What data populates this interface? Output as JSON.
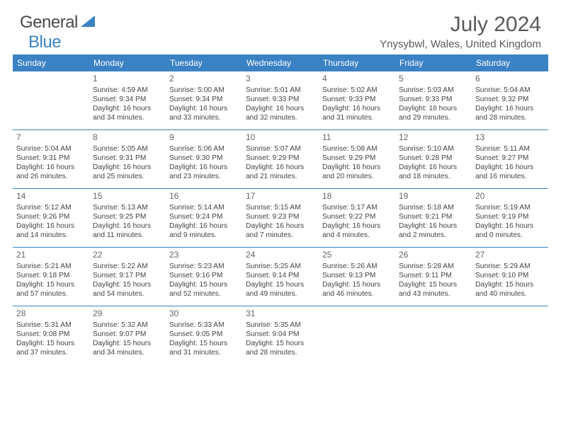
{
  "brand": {
    "part1": "General",
    "part2": "Blue"
  },
  "title": "July 2024",
  "location": "Ynysybwl, Wales, United Kingdom",
  "colors": {
    "header_bg": "#3b82c4",
    "header_text": "#ffffff",
    "border": "#3b82c4",
    "text": "#444444",
    "title": "#5a5a5a"
  },
  "weekdays": [
    "Sunday",
    "Monday",
    "Tuesday",
    "Wednesday",
    "Thursday",
    "Friday",
    "Saturday"
  ],
  "weeks": [
    [
      null,
      {
        "day": "1",
        "sunrise": "Sunrise: 4:59 AM",
        "sunset": "Sunset: 9:34 PM",
        "daylight": "Daylight: 16 hours and 34 minutes."
      },
      {
        "day": "2",
        "sunrise": "Sunrise: 5:00 AM",
        "sunset": "Sunset: 9:34 PM",
        "daylight": "Daylight: 16 hours and 33 minutes."
      },
      {
        "day": "3",
        "sunrise": "Sunrise: 5:01 AM",
        "sunset": "Sunset: 9:33 PM",
        "daylight": "Daylight: 16 hours and 32 minutes."
      },
      {
        "day": "4",
        "sunrise": "Sunrise: 5:02 AM",
        "sunset": "Sunset: 9:33 PM",
        "daylight": "Daylight: 16 hours and 31 minutes."
      },
      {
        "day": "5",
        "sunrise": "Sunrise: 5:03 AM",
        "sunset": "Sunset: 9:33 PM",
        "daylight": "Daylight: 16 hours and 29 minutes."
      },
      {
        "day": "6",
        "sunrise": "Sunrise: 5:04 AM",
        "sunset": "Sunset: 9:32 PM",
        "daylight": "Daylight: 16 hours and 28 minutes."
      }
    ],
    [
      {
        "day": "7",
        "sunrise": "Sunrise: 5:04 AM",
        "sunset": "Sunset: 9:31 PM",
        "daylight": "Daylight: 16 hours and 26 minutes."
      },
      {
        "day": "8",
        "sunrise": "Sunrise: 5:05 AM",
        "sunset": "Sunset: 9:31 PM",
        "daylight": "Daylight: 16 hours and 25 minutes."
      },
      {
        "day": "9",
        "sunrise": "Sunrise: 5:06 AM",
        "sunset": "Sunset: 9:30 PM",
        "daylight": "Daylight: 16 hours and 23 minutes."
      },
      {
        "day": "10",
        "sunrise": "Sunrise: 5:07 AM",
        "sunset": "Sunset: 9:29 PM",
        "daylight": "Daylight: 16 hours and 21 minutes."
      },
      {
        "day": "11",
        "sunrise": "Sunrise: 5:08 AM",
        "sunset": "Sunset: 9:29 PM",
        "daylight": "Daylight: 16 hours and 20 minutes."
      },
      {
        "day": "12",
        "sunrise": "Sunrise: 5:10 AM",
        "sunset": "Sunset: 9:28 PM",
        "daylight": "Daylight: 16 hours and 18 minutes."
      },
      {
        "day": "13",
        "sunrise": "Sunrise: 5:11 AM",
        "sunset": "Sunset: 9:27 PM",
        "daylight": "Daylight: 16 hours and 16 minutes."
      }
    ],
    [
      {
        "day": "14",
        "sunrise": "Sunrise: 5:12 AM",
        "sunset": "Sunset: 9:26 PM",
        "daylight": "Daylight: 16 hours and 14 minutes."
      },
      {
        "day": "15",
        "sunrise": "Sunrise: 5:13 AM",
        "sunset": "Sunset: 9:25 PM",
        "daylight": "Daylight: 16 hours and 11 minutes."
      },
      {
        "day": "16",
        "sunrise": "Sunrise: 5:14 AM",
        "sunset": "Sunset: 9:24 PM",
        "daylight": "Daylight: 16 hours and 9 minutes."
      },
      {
        "day": "17",
        "sunrise": "Sunrise: 5:15 AM",
        "sunset": "Sunset: 9:23 PM",
        "daylight": "Daylight: 16 hours and 7 minutes."
      },
      {
        "day": "18",
        "sunrise": "Sunrise: 5:17 AM",
        "sunset": "Sunset: 9:22 PM",
        "daylight": "Daylight: 16 hours and 4 minutes."
      },
      {
        "day": "19",
        "sunrise": "Sunrise: 5:18 AM",
        "sunset": "Sunset: 9:21 PM",
        "daylight": "Daylight: 16 hours and 2 minutes."
      },
      {
        "day": "20",
        "sunrise": "Sunrise: 5:19 AM",
        "sunset": "Sunset: 9:19 PM",
        "daylight": "Daylight: 16 hours and 0 minutes."
      }
    ],
    [
      {
        "day": "21",
        "sunrise": "Sunrise: 5:21 AM",
        "sunset": "Sunset: 9:18 PM",
        "daylight": "Daylight: 15 hours and 57 minutes."
      },
      {
        "day": "22",
        "sunrise": "Sunrise: 5:22 AM",
        "sunset": "Sunset: 9:17 PM",
        "daylight": "Daylight: 15 hours and 54 minutes."
      },
      {
        "day": "23",
        "sunrise": "Sunrise: 5:23 AM",
        "sunset": "Sunset: 9:16 PM",
        "daylight": "Daylight: 15 hours and 52 minutes."
      },
      {
        "day": "24",
        "sunrise": "Sunrise: 5:25 AM",
        "sunset": "Sunset: 9:14 PM",
        "daylight": "Daylight: 15 hours and 49 minutes."
      },
      {
        "day": "25",
        "sunrise": "Sunrise: 5:26 AM",
        "sunset": "Sunset: 9:13 PM",
        "daylight": "Daylight: 15 hours and 46 minutes."
      },
      {
        "day": "26",
        "sunrise": "Sunrise: 5:28 AM",
        "sunset": "Sunset: 9:11 PM",
        "daylight": "Daylight: 15 hours and 43 minutes."
      },
      {
        "day": "27",
        "sunrise": "Sunrise: 5:29 AM",
        "sunset": "Sunset: 9:10 PM",
        "daylight": "Daylight: 15 hours and 40 minutes."
      }
    ],
    [
      {
        "day": "28",
        "sunrise": "Sunrise: 5:31 AM",
        "sunset": "Sunset: 9:08 PM",
        "daylight": "Daylight: 15 hours and 37 minutes."
      },
      {
        "day": "29",
        "sunrise": "Sunrise: 5:32 AM",
        "sunset": "Sunset: 9:07 PM",
        "daylight": "Daylight: 15 hours and 34 minutes."
      },
      {
        "day": "30",
        "sunrise": "Sunrise: 5:33 AM",
        "sunset": "Sunset: 9:05 PM",
        "daylight": "Daylight: 15 hours and 31 minutes."
      },
      {
        "day": "31",
        "sunrise": "Sunrise: 5:35 AM",
        "sunset": "Sunset: 9:04 PM",
        "daylight": "Daylight: 15 hours and 28 minutes."
      },
      null,
      null,
      null
    ]
  ]
}
